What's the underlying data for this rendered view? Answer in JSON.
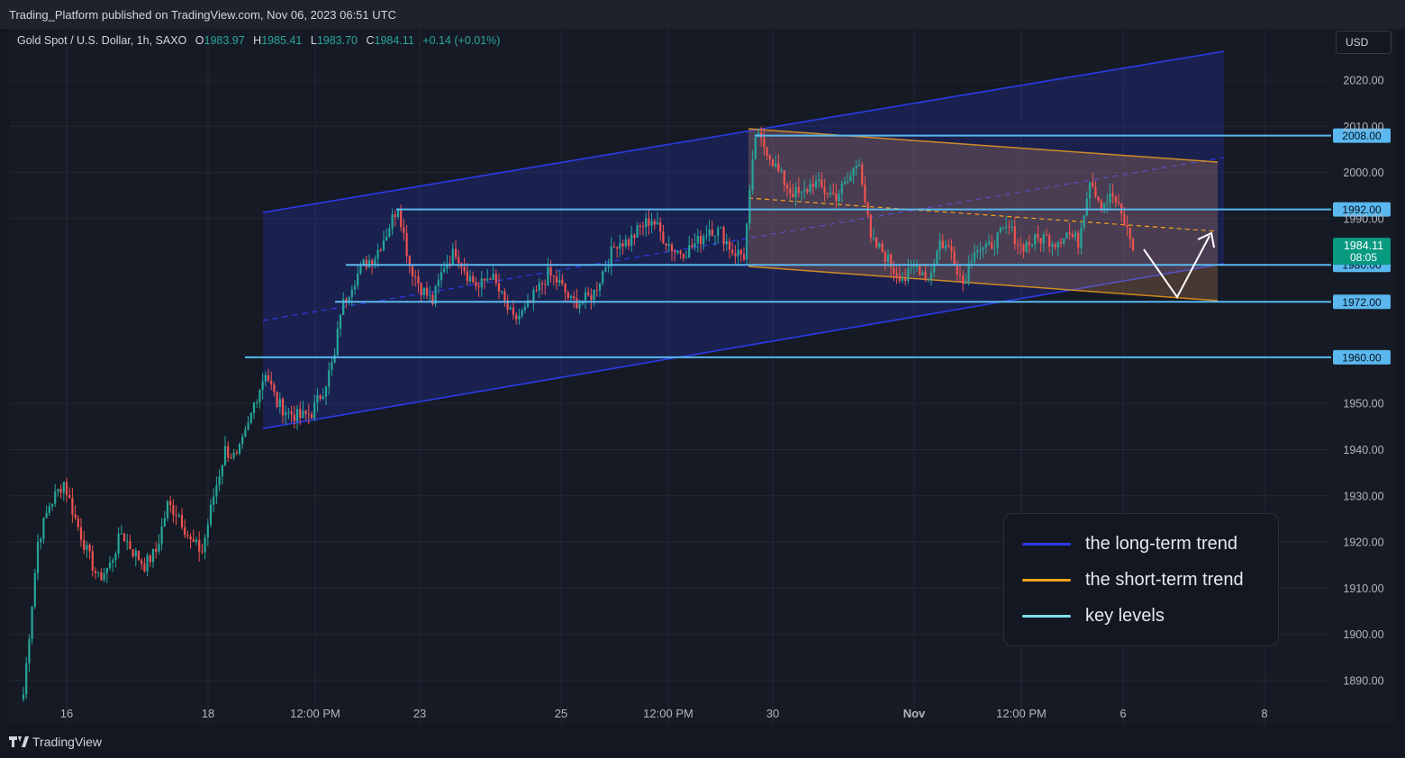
{
  "header": {
    "published_text": "Trading_Platform published on TradingView.com, Nov 06, 2023 06:51 UTC"
  },
  "symbol": {
    "name": "Gold Spot / U.S. Dollar, 1h, SAXO",
    "o_label": "O",
    "o_value": "1983.97",
    "h_label": "H",
    "h_value": "1985.41",
    "l_label": "L",
    "l_value": "1983.70",
    "c_label": "C",
    "c_value": "1984.11",
    "change": "+0.14 (+0.01%)"
  },
  "currency_button": "USD",
  "footer": {
    "brand": "TradingView"
  },
  "legend": {
    "items": [
      {
        "label": "the long-term trend",
        "color": "#2b3be8"
      },
      {
        "label": "the short-term trend",
        "color": "#f7a21b"
      },
      {
        "label": "key levels",
        "color": "#7ee0ee"
      }
    ]
  },
  "chart_data": {
    "type": "candlestick",
    "instrument": "Gold Spot / U.S. Dollar",
    "timeframe": "1h",
    "y_axis": {
      "ylim": [
        1885,
        2028
      ],
      "ticks": [
        "2020.00",
        "2010.00",
        "2000.00",
        "1990.00",
        "1950.00",
        "1940.00",
        "1930.00",
        "1920.00",
        "1910.00",
        "1900.00",
        "1890.00"
      ],
      "tick_values": [
        2020,
        2010,
        2000,
        1990,
        1950,
        1940,
        1930,
        1920,
        1910,
        1900,
        1890
      ]
    },
    "x_axis": {
      "labels": [
        "16",
        "18",
        "12:00 PM",
        "23",
        "25",
        "12:00 PM",
        "30",
        "Nov",
        "12:00 PM",
        "6",
        "8"
      ]
    },
    "key_levels": [
      {
        "label": "2008.00",
        "value": 2008
      },
      {
        "label": "1992.00",
        "value": 1992
      },
      {
        "label": "1980.00",
        "value": 1980
      },
      {
        "label": "1972.00",
        "value": 1972
      },
      {
        "label": "1960.00",
        "value": 1960
      }
    ],
    "last_price": {
      "label": "1984.11",
      "countdown": "08:05",
      "value": 1984.11
    },
    "colors": {
      "up": "#26a69a",
      "down": "#ef5350",
      "long_channel": "#2b3be8",
      "short_channel": "#f7a21b",
      "levels": "#5ab8ee",
      "price_tag": "#089981"
    },
    "price_path": [
      [
        0,
        1887
      ],
      [
        5,
        1920
      ],
      [
        9,
        1928
      ],
      [
        14,
        1933
      ],
      [
        18,
        1925
      ],
      [
        22,
        1918
      ],
      [
        26,
        1912
      ],
      [
        30,
        1915
      ],
      [
        34,
        1922
      ],
      [
        38,
        1918
      ],
      [
        42,
        1915
      ],
      [
        46,
        1918
      ],
      [
        50,
        1928
      ],
      [
        54,
        1926
      ],
      [
        58,
        1920
      ],
      [
        62,
        1918
      ],
      [
        66,
        1930
      ],
      [
        70,
        1940
      ],
      [
        74,
        1938
      ],
      [
        78,
        1945
      ],
      [
        80,
        1950
      ],
      [
        84,
        1957
      ],
      [
        88,
        1950
      ],
      [
        92,
        1948
      ],
      [
        96,
        1947
      ],
      [
        100,
        1948
      ],
      [
        104,
        1953
      ],
      [
        108,
        1960
      ],
      [
        110,
        1970
      ],
      [
        114,
        1976
      ],
      [
        118,
        1980
      ],
      [
        122,
        1982
      ],
      [
        126,
        1987
      ],
      [
        130,
        1993
      ],
      [
        134,
        1980
      ],
      [
        138,
        1975
      ],
      [
        142,
        1972
      ],
      [
        146,
        1980
      ],
      [
        150,
        1983
      ],
      [
        154,
        1978
      ],
      [
        158,
        1975
      ],
      [
        162,
        1978
      ],
      [
        166,
        1973
      ],
      [
        170,
        1968
      ],
      [
        174,
        1970
      ],
      [
        178,
        1974
      ],
      [
        182,
        1978
      ],
      [
        186,
        1976
      ],
      [
        190,
        1972
      ],
      [
        194,
        1972
      ],
      [
        198,
        1974
      ],
      [
        202,
        1980
      ],
      [
        206,
        1985
      ],
      [
        210,
        1985
      ],
      [
        214,
        1988
      ],
      [
        218,
        1990
      ],
      [
        222,
        1986
      ],
      [
        226,
        1983
      ],
      [
        230,
        1983
      ],
      [
        234,
        1985
      ],
      [
        238,
        1988
      ],
      [
        242,
        1987
      ],
      [
        246,
        1983
      ],
      [
        250,
        1982
      ],
      [
        254,
        2008
      ],
      [
        258,
        2005
      ],
      [
        262,
        2000
      ],
      [
        266,
        1996
      ],
      [
        270,
        1995
      ],
      [
        274,
        1998
      ],
      [
        278,
        1996
      ],
      [
        282,
        1995
      ],
      [
        286,
        1998
      ],
      [
        290,
        2003
      ],
      [
        294,
        1985
      ],
      [
        298,
        1983
      ],
      [
        302,
        1979
      ],
      [
        306,
        1977
      ],
      [
        310,
        1980
      ],
      [
        314,
        1977
      ],
      [
        318,
        1985
      ],
      [
        322,
        1983
      ],
      [
        326,
        1976
      ],
      [
        330,
        1984
      ],
      [
        334,
        1983
      ],
      [
        338,
        1986
      ],
      [
        342,
        1988
      ],
      [
        346,
        1984
      ],
      [
        350,
        1985
      ],
      [
        354,
        1986
      ],
      [
        358,
        1985
      ],
      [
        362,
        1987
      ],
      [
        366,
        1985
      ],
      [
        370,
        1999
      ],
      [
        374,
        1993
      ],
      [
        378,
        1995
      ],
      [
        382,
        1989
      ],
      [
        385,
        1984
      ]
    ]
  }
}
